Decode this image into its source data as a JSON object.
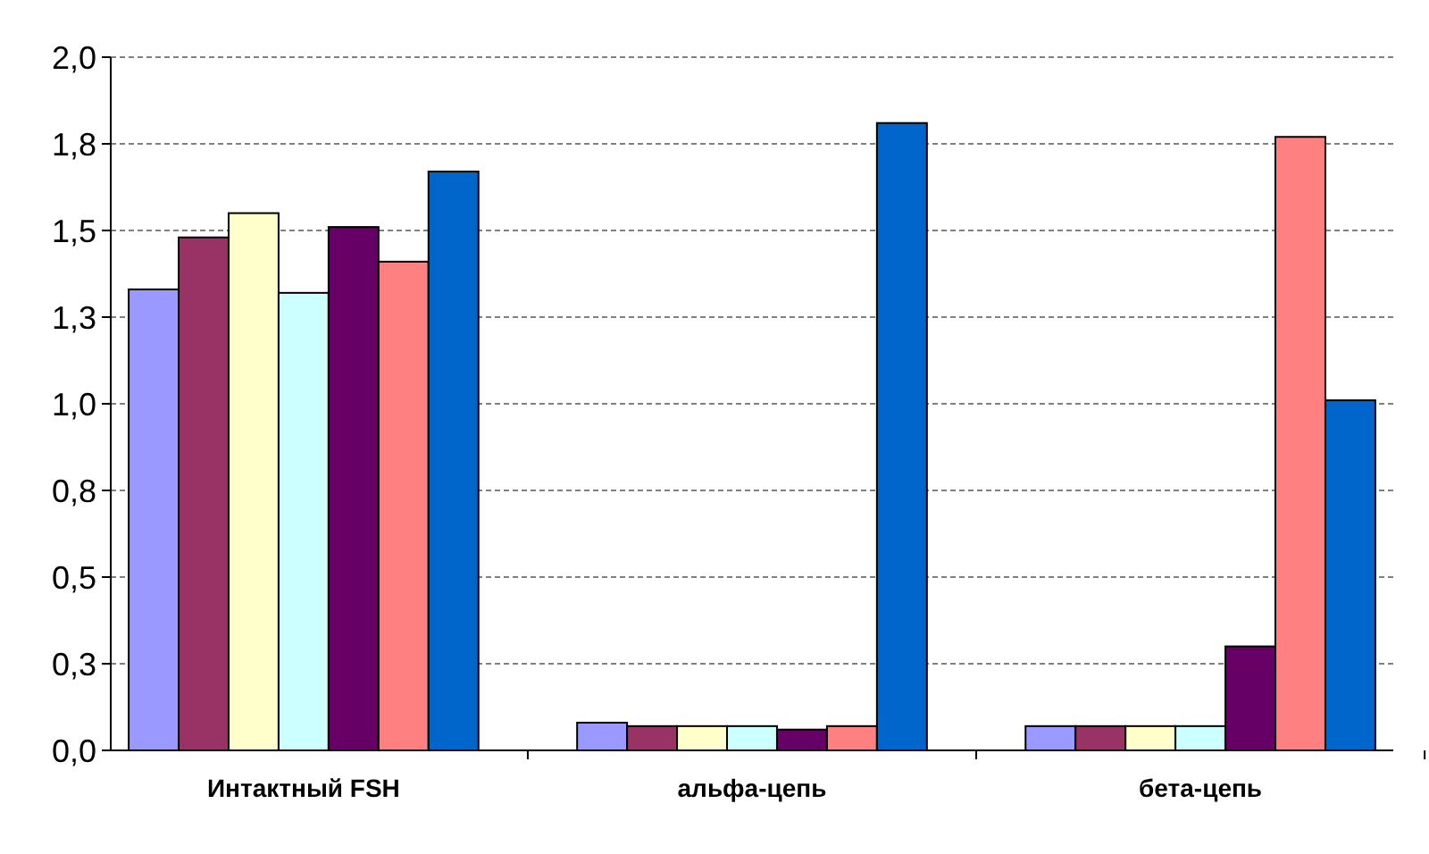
{
  "chart_data": {
    "type": "bar",
    "categories": [
      "Интактный FSH",
      "альфа-цепь",
      "бета-цепь"
    ],
    "series": [
      {
        "color": "#9999ff",
        "values": [
          1.33,
          0.08,
          0.07
        ]
      },
      {
        "color": "#993366",
        "values": [
          1.48,
          0.07,
          0.07
        ]
      },
      {
        "color": "#ffffcc",
        "values": [
          1.55,
          0.07,
          0.07
        ]
      },
      {
        "color": "#ccffff",
        "values": [
          1.32,
          0.07,
          0.07
        ]
      },
      {
        "color": "#660066",
        "values": [
          1.51,
          0.06,
          0.3
        ]
      },
      {
        "color": "#ff8080",
        "values": [
          1.41,
          0.07,
          1.77
        ]
      },
      {
        "color": "#0066cc",
        "values": [
          1.67,
          1.81,
          1.01
        ]
      }
    ],
    "ylim": [
      0,
      2
    ],
    "yticks": [
      {
        "value": 0,
        "label": "0,0"
      },
      {
        "value": 0.25,
        "label": "0,3"
      },
      {
        "value": 0.5,
        "label": "0,5"
      },
      {
        "value": 0.75,
        "label": "0,8"
      },
      {
        "value": 1,
        "label": "1,0"
      },
      {
        "value": 1.25,
        "label": "1,3"
      },
      {
        "value": 1.5,
        "label": "1,5"
      },
      {
        "value": 1.75,
        "label": "1,8"
      },
      {
        "value": 2,
        "label": "2,0"
      }
    ],
    "grid": "y"
  }
}
